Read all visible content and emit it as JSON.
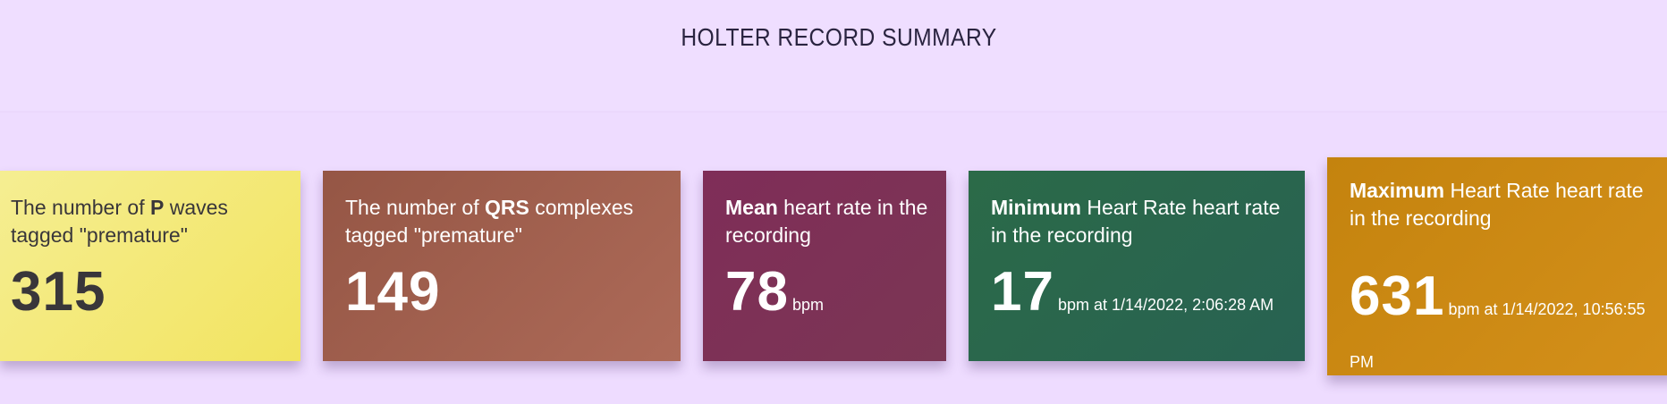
{
  "header": {
    "title": "HOLTER RECORD SUMMARY"
  },
  "cards": [
    {
      "id": "premature-p-waves",
      "label_pre": "The number of ",
      "label_bold": "P",
      "label_post": " waves tagged \"premature\"",
      "value": "315",
      "unit": "",
      "color": "#f3e97a"
    },
    {
      "id": "premature-qrs",
      "label_pre": "The number of ",
      "label_bold": "QRS",
      "label_post": " complexes tagged \"premature\"",
      "value": "149",
      "unit": "",
      "color": "#a5614f"
    },
    {
      "id": "mean-heart-rate",
      "label_pre": "",
      "label_bold": "Mean",
      "label_post": " heart rate in the recording",
      "value": "78",
      "unit": "bpm",
      "color": "#7e3156"
    },
    {
      "id": "minimum-heart-rate",
      "label_pre": "",
      "label_bold": "Minimum",
      "label_post": " Heart Rate heart rate in the recording",
      "value": "17",
      "unit": "bpm at 1/14/2022, 2:06:28 AM",
      "color": "#2a664c"
    },
    {
      "id": "maximum-heart-rate",
      "label_pre": "",
      "label_bold": "Maximum",
      "label_post": " Heart Rate heart rate in the recording",
      "value": "631",
      "unit": "bpm at 1/14/2022, 10:56:55 PM",
      "color": "#cc8914"
    }
  ]
}
